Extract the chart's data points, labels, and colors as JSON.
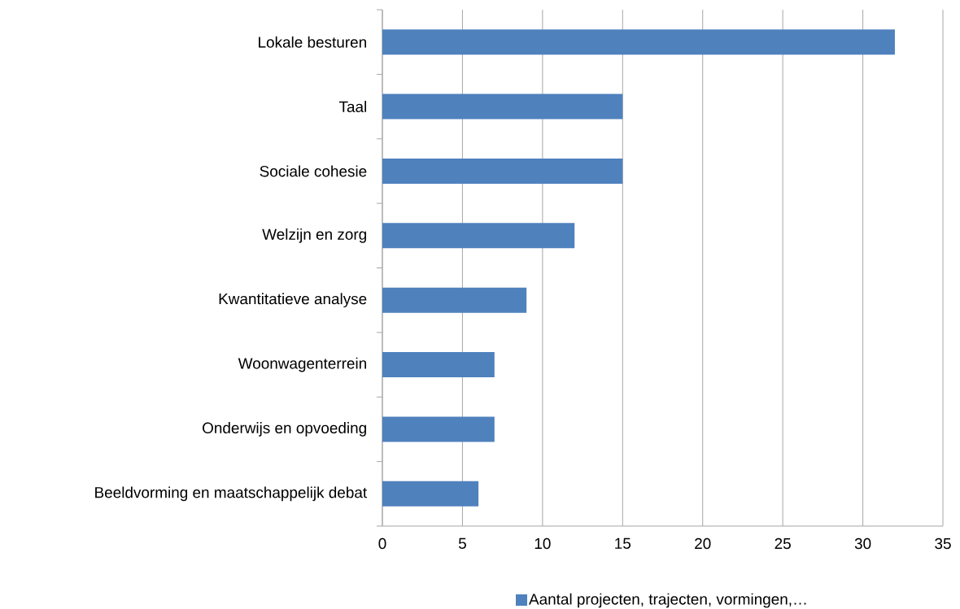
{
  "chart_data": {
    "type": "bar",
    "orientation": "horizontal",
    "categories": [
      "Lokale besturen",
      "Taal",
      "Sociale cohesie",
      "Welzijn en zorg",
      "Kwantitatieve analyse",
      "Woonwagenterrein",
      "Onderwijs en opvoeding",
      "Beeldvorming en maatschappelijk debat"
    ],
    "series": [
      {
        "name": "Aantal projecten, trajecten, vormingen,…",
        "color": "#4f81bd",
        "values": [
          32,
          15,
          15,
          12,
          9,
          7,
          7,
          6
        ]
      }
    ],
    "xlim": [
      0,
      35
    ],
    "xticks": [
      0,
      5,
      10,
      15,
      20,
      25,
      30,
      35
    ],
    "grid": "x",
    "legend": "bottom"
  }
}
